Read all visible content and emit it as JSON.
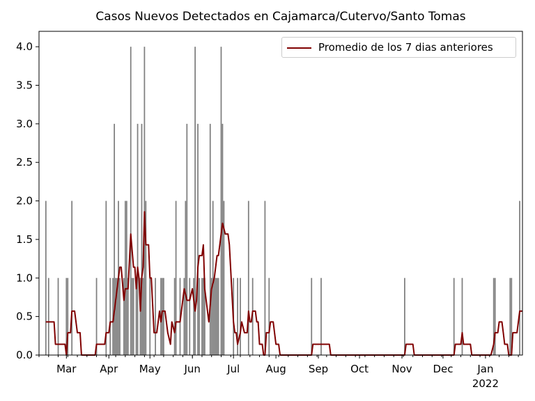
{
  "chart_data": {
    "type": "bar",
    "title": "Casos Nuevos Detectados en Cajamarca/Cutervo/Santo Tomas",
    "xlabel": "",
    "ylabel": "",
    "ylim": [
      0,
      4.2
    ],
    "y_ticks": [
      "0.0",
      "0.5",
      "1.0",
      "1.5",
      "2.0",
      "2.5",
      "3.0",
      "3.5",
      "4.0"
    ],
    "x_range": [
      "2021-02-09",
      "2022-01-28"
    ],
    "x_ticks": [
      {
        "date": "2021-03-01",
        "label": "Mar"
      },
      {
        "date": "2021-04-01",
        "label": "Apr"
      },
      {
        "date": "2021-05-01",
        "label": "May"
      },
      {
        "date": "2021-06-01",
        "label": "Jun"
      },
      {
        "date": "2021-07-01",
        "label": "Jul"
      },
      {
        "date": "2021-08-01",
        "label": "Aug"
      },
      {
        "date": "2021-09-01",
        "label": "Sep"
      },
      {
        "date": "2021-10-01",
        "label": "Oct"
      },
      {
        "date": "2021-11-01",
        "label": "Nov"
      },
      {
        "date": "2021-12-01",
        "label": "Dec"
      },
      {
        "date": "2022-01-01",
        "label": "Jan",
        "sublabel": "2022"
      }
    ],
    "grid": false,
    "legend_position": "top-right",
    "colors": {
      "bars": "#808080",
      "line": "#800000"
    },
    "series": [
      {
        "type": "bar",
        "values": [
          [
            "2021-02-14",
            2
          ],
          [
            "2021-02-16",
            1
          ],
          [
            "2021-02-23",
            1
          ],
          [
            "2021-03-01",
            1
          ],
          [
            "2021-03-02",
            1
          ],
          [
            "2021-03-05",
            2
          ],
          [
            "2021-03-23",
            1
          ],
          [
            "2021-03-30",
            2
          ],
          [
            "2021-04-02",
            1
          ],
          [
            "2021-04-04",
            1
          ],
          [
            "2021-04-05",
            3
          ],
          [
            "2021-04-06",
            1
          ],
          [
            "2021-04-07",
            1
          ],
          [
            "2021-04-08",
            2
          ],
          [
            "2021-04-09",
            1
          ],
          [
            "2021-04-12",
            1
          ],
          [
            "2021-04-13",
            2
          ],
          [
            "2021-04-14",
            2
          ],
          [
            "2021-04-15",
            1
          ],
          [
            "2021-04-17",
            4
          ],
          [
            "2021-04-18",
            1
          ],
          [
            "2021-04-19",
            1
          ],
          [
            "2021-04-21",
            1
          ],
          [
            "2021-04-22",
            3
          ],
          [
            "2021-04-24",
            1
          ],
          [
            "2021-04-25",
            3
          ],
          [
            "2021-04-26",
            1
          ],
          [
            "2021-04-27",
            4
          ],
          [
            "2021-04-28",
            2
          ],
          [
            "2021-05-01",
            1
          ],
          [
            "2021-05-05",
            1
          ],
          [
            "2021-05-09",
            1
          ],
          [
            "2021-05-10",
            1
          ],
          [
            "2021-05-11",
            1
          ],
          [
            "2021-05-19",
            1
          ],
          [
            "2021-05-20",
            2
          ],
          [
            "2021-05-23",
            1
          ],
          [
            "2021-05-26",
            1
          ],
          [
            "2021-05-27",
            2
          ],
          [
            "2021-05-28",
            3
          ],
          [
            "2021-05-30",
            1
          ],
          [
            "2021-06-02",
            1
          ],
          [
            "2021-06-03",
            4
          ],
          [
            "2021-06-05",
            3
          ],
          [
            "2021-06-06",
            1
          ],
          [
            "2021-06-08",
            1
          ],
          [
            "2021-06-09",
            1
          ],
          [
            "2021-06-10",
            1
          ],
          [
            "2021-06-14",
            3
          ],
          [
            "2021-06-15",
            1
          ],
          [
            "2021-06-16",
            2
          ],
          [
            "2021-06-17",
            1
          ],
          [
            "2021-06-18",
            1
          ],
          [
            "2021-06-19",
            1
          ],
          [
            "2021-06-20",
            1
          ],
          [
            "2021-06-22",
            4
          ],
          [
            "2021-06-23",
            3
          ],
          [
            "2021-06-24",
            2
          ],
          [
            "2021-07-01",
            1
          ],
          [
            "2021-07-04",
            1
          ],
          [
            "2021-07-06",
            1
          ],
          [
            "2021-07-12",
            2
          ],
          [
            "2021-07-15",
            1
          ],
          [
            "2021-07-24",
            2
          ],
          [
            "2021-07-27",
            1
          ],
          [
            "2021-08-27",
            1
          ],
          [
            "2021-09-03",
            1
          ],
          [
            "2021-11-03",
            1
          ],
          [
            "2021-12-09",
            1
          ],
          [
            "2021-12-15",
            1
          ],
          [
            "2022-01-07",
            1
          ],
          [
            "2022-01-08",
            1
          ],
          [
            "2022-01-19",
            1
          ],
          [
            "2022-01-20",
            1
          ],
          [
            "2022-01-26",
            2
          ]
        ]
      },
      {
        "type": "line",
        "name": "Promedio de los 7 dias anteriores",
        "points": [
          [
            "2021-02-14",
            0.43
          ],
          [
            "2021-02-20",
            0.43
          ],
          [
            "2021-02-21",
            0.14
          ],
          [
            "2021-02-28",
            0.14
          ],
          [
            "2021-03-01",
            0.0
          ],
          [
            "2021-03-02",
            0.29
          ],
          [
            "2021-03-04",
            0.29
          ],
          [
            "2021-03-05",
            0.57
          ],
          [
            "2021-03-07",
            0.57
          ],
          [
            "2021-03-09",
            0.29
          ],
          [
            "2021-03-11",
            0.29
          ],
          [
            "2021-03-12",
            0.0
          ],
          [
            "2021-03-22",
            0.0
          ],
          [
            "2021-03-23",
            0.14
          ],
          [
            "2021-03-29",
            0.14
          ],
          [
            "2021-03-30",
            0.29
          ],
          [
            "2021-04-01",
            0.29
          ],
          [
            "2021-04-02",
            0.43
          ],
          [
            "2021-04-04",
            0.43
          ],
          [
            "2021-04-08",
            1.0
          ],
          [
            "2021-04-09",
            1.14
          ],
          [
            "2021-04-10",
            1.14
          ],
          [
            "2021-04-12",
            0.71
          ],
          [
            "2021-04-13",
            0.86
          ],
          [
            "2021-04-15",
            0.86
          ],
          [
            "2021-04-17",
            1.57
          ],
          [
            "2021-04-19",
            1.14
          ],
          [
            "2021-04-20",
            1.14
          ],
          [
            "2021-04-21",
            0.86
          ],
          [
            "2021-04-22",
            1.14
          ],
          [
            "2021-04-23",
            1.0
          ],
          [
            "2021-04-24",
            0.57
          ],
          [
            "2021-04-25",
            1.0
          ],
          [
            "2021-04-26",
            1.14
          ],
          [
            "2021-04-27",
            1.86
          ],
          [
            "2021-04-28",
            1.43
          ],
          [
            "2021-04-30",
            1.43
          ],
          [
            "2021-05-01",
            1.0
          ],
          [
            "2021-05-02",
            1.0
          ],
          [
            "2021-05-04",
            0.29
          ],
          [
            "2021-05-06",
            0.29
          ],
          [
            "2021-05-08",
            0.57
          ],
          [
            "2021-05-09",
            0.43
          ],
          [
            "2021-05-10",
            0.57
          ],
          [
            "2021-05-12",
            0.57
          ],
          [
            "2021-05-14",
            0.29
          ],
          [
            "2021-05-16",
            0.14
          ],
          [
            "2021-05-17",
            0.43
          ],
          [
            "2021-05-19",
            0.29
          ],
          [
            "2021-05-20",
            0.43
          ],
          [
            "2021-05-23",
            0.43
          ],
          [
            "2021-05-26",
            0.86
          ],
          [
            "2021-05-28",
            0.71
          ],
          [
            "2021-05-30",
            0.71
          ],
          [
            "2021-06-01",
            0.86
          ],
          [
            "2021-06-03",
            0.57
          ],
          [
            "2021-06-04",
            0.71
          ],
          [
            "2021-06-05",
            1.14
          ],
          [
            "2021-06-06",
            1.29
          ],
          [
            "2021-06-08",
            1.29
          ],
          [
            "2021-06-09",
            1.43
          ],
          [
            "2021-06-10",
            0.86
          ],
          [
            "2021-06-13",
            0.43
          ],
          [
            "2021-06-15",
            0.86
          ],
          [
            "2021-06-17",
            1.0
          ],
          [
            "2021-06-19",
            1.29
          ],
          [
            "2021-06-20",
            1.29
          ],
          [
            "2021-06-23",
            1.71
          ],
          [
            "2021-06-25",
            1.57
          ],
          [
            "2021-06-27",
            1.57
          ],
          [
            "2021-06-28",
            1.43
          ],
          [
            "2021-07-01",
            0.43
          ],
          [
            "2021-07-02",
            0.29
          ],
          [
            "2021-07-03",
            0.29
          ],
          [
            "2021-07-04",
            0.14
          ],
          [
            "2021-07-06",
            0.29
          ],
          [
            "2021-07-07",
            0.43
          ],
          [
            "2021-07-09",
            0.29
          ],
          [
            "2021-07-11",
            0.29
          ],
          [
            "2021-07-12",
            0.57
          ],
          [
            "2021-07-13",
            0.43
          ],
          [
            "2021-07-14",
            0.43
          ],
          [
            "2021-07-15",
            0.57
          ],
          [
            "2021-07-17",
            0.57
          ],
          [
            "2021-07-18",
            0.43
          ],
          [
            "2021-07-19",
            0.43
          ],
          [
            "2021-07-20",
            0.14
          ],
          [
            "2021-07-22",
            0.14
          ],
          [
            "2021-07-23",
            0.0
          ],
          [
            "2021-07-24",
            0.0
          ],
          [
            "2021-07-25",
            0.29
          ],
          [
            "2021-07-27",
            0.29
          ],
          [
            "2021-07-28",
            0.43
          ],
          [
            "2021-07-30",
            0.43
          ],
          [
            "2021-08-01",
            0.14
          ],
          [
            "2021-08-03",
            0.14
          ],
          [
            "2021-08-04",
            0.0
          ],
          [
            "2021-08-27",
            0.0
          ],
          [
            "2021-08-28",
            0.14
          ],
          [
            "2021-09-09",
            0.14
          ],
          [
            "2021-09-10",
            0.0
          ],
          [
            "2021-11-03",
            0.0
          ],
          [
            "2021-11-04",
            0.14
          ],
          [
            "2021-11-09",
            0.14
          ],
          [
            "2021-11-10",
            0.0
          ],
          [
            "2021-12-09",
            0.0
          ],
          [
            "2021-12-10",
            0.14
          ],
          [
            "2021-12-14",
            0.14
          ],
          [
            "2021-12-15",
            0.29
          ],
          [
            "2021-12-16",
            0.14
          ],
          [
            "2021-12-21",
            0.14
          ],
          [
            "2021-12-22",
            0.0
          ],
          [
            "2022-01-05",
            0.0
          ],
          [
            "2022-01-07",
            0.14
          ],
          [
            "2022-01-08",
            0.29
          ],
          [
            "2022-01-10",
            0.29
          ],
          [
            "2022-01-11",
            0.43
          ],
          [
            "2022-01-13",
            0.43
          ],
          [
            "2022-01-14",
            0.29
          ],
          [
            "2022-01-15",
            0.14
          ],
          [
            "2022-01-17",
            0.14
          ],
          [
            "2022-01-18",
            0.0
          ],
          [
            "2022-01-20",
            0.0
          ],
          [
            "2022-01-21",
            0.29
          ],
          [
            "2022-01-24",
            0.29
          ],
          [
            "2022-01-26",
            0.57
          ],
          [
            "2022-01-28",
            0.57
          ]
        ]
      }
    ]
  }
}
